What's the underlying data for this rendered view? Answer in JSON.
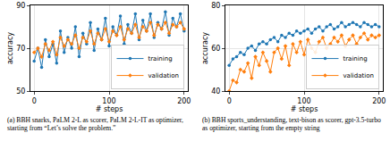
{
  "chart_data": [
    {
      "type": "line",
      "caption": "(a) BBH snarks, PaLM 2-L as scorer, PaLM 2-L-IT as optimizer, starting from “Let’s solve the problem.”",
      "x_label": "# steps",
      "y_label": "accuracy",
      "x": [
        0,
        5,
        10,
        15,
        20,
        25,
        30,
        35,
        40,
        45,
        50,
        55,
        60,
        65,
        70,
        75,
        80,
        85,
        90,
        95,
        100,
        105,
        110,
        115,
        120,
        125,
        130,
        135,
        140,
        145,
        150,
        155,
        160,
        165,
        170,
        175,
        180,
        185,
        190,
        195,
        200
      ],
      "series": [
        {
          "name": "training",
          "color": "#1f77b4",
          "marker": "circle",
          "values": [
            64,
            70,
            61,
            74,
            66,
            72,
            63,
            78,
            68,
            75,
            70,
            80,
            66,
            77,
            72,
            82,
            69,
            79,
            74,
            84,
            71,
            80,
            76,
            85,
            72,
            81,
            77,
            86,
            74,
            83,
            78,
            86,
            75,
            82,
            79,
            87,
            76,
            84,
            80,
            86,
            78
          ]
        },
        {
          "name": "validation",
          "color": "#ff7f0e",
          "marker": "diamond",
          "values": [
            68,
            70,
            66,
            72,
            69,
            73,
            67,
            75,
            71,
            74,
            72,
            76,
            70,
            75,
            73,
            78,
            72,
            77,
            74,
            79,
            73,
            78,
            76,
            80,
            74,
            79,
            77,
            81,
            75,
            80,
            78,
            82,
            76,
            81,
            79,
            82,
            77,
            81,
            80,
            82,
            79
          ]
        }
      ],
      "xlim": [
        -5,
        205
      ],
      "xticks": [
        0,
        100,
        200
      ],
      "ylim": [
        50,
        90
      ],
      "yticks": [
        50,
        70,
        90
      ],
      "grid": true,
      "legend": "lower right"
    },
    {
      "type": "line",
      "caption": "(b) BBH sports_understanding, text-bison as scorer, gpt-3.5-turbo as optimizer, starting from the empty string",
      "x_label": "# steps",
      "y_label": "accuracy",
      "x": [
        0,
        5,
        10,
        15,
        20,
        25,
        30,
        35,
        40,
        45,
        50,
        55,
        60,
        65,
        70,
        75,
        80,
        85,
        90,
        95,
        100,
        105,
        110,
        115,
        120,
        125,
        130,
        135,
        140,
        145,
        150,
        155,
        160,
        165,
        170,
        175,
        180,
        185,
        190,
        195,
        200
      ],
      "series": [
        {
          "name": "training",
          "color": "#1f77b4",
          "marker": "circle",
          "values": [
            52,
            55,
            56,
            58,
            57,
            60,
            61,
            59,
            62,
            63,
            62,
            64,
            65,
            63,
            66,
            65,
            67,
            66,
            68,
            67,
            68,
            69,
            67,
            69,
            70,
            68,
            70,
            71,
            69,
            70,
            72,
            70,
            71,
            72,
            71,
            70,
            72,
            71,
            70,
            71,
            70
          ]
        },
        {
          "name": "validation",
          "color": "#ff7f0e",
          "marker": "diamond",
          "values": [
            40,
            45,
            44,
            50,
            49,
            53,
            46,
            56,
            52,
            58,
            54,
            49,
            58,
            60,
            55,
            61,
            52,
            62,
            58,
            63,
            57,
            64,
            60,
            58,
            63,
            65,
            60,
            62,
            65,
            63,
            66,
            61,
            64,
            66,
            62,
            65,
            67,
            64,
            66,
            65,
            66
          ]
        }
      ],
      "xlim": [
        -5,
        205
      ],
      "xticks": [
        0,
        100,
        200
      ],
      "ylim": [
        40,
        80
      ],
      "yticks": [
        40,
        60,
        80
      ],
      "grid": true,
      "legend": "lower right"
    }
  ]
}
